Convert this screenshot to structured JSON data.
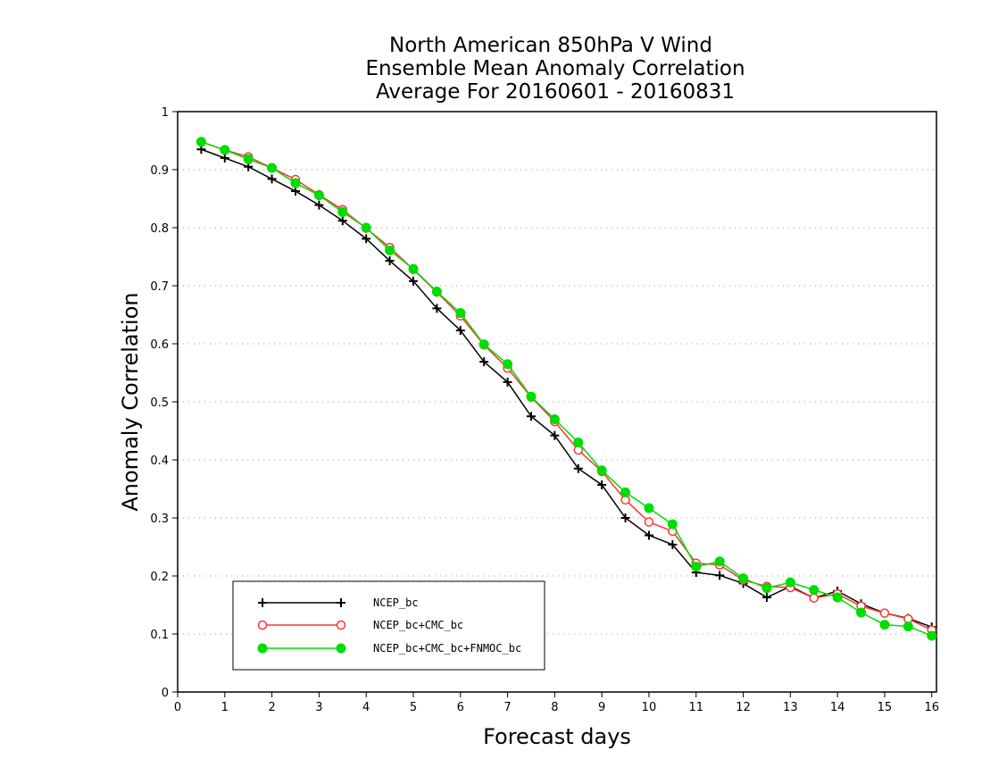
{
  "chart_data": {
    "type": "line",
    "title": [
      "North American 850hPa V Wind",
      "Ensemble Mean Anomaly Correlation",
      "Average For 20160601 - 20160831"
    ],
    "xlabel": "Forecast days",
    "ylabel": "Anomaly Correlation",
    "xlim": [
      0,
      16.1
    ],
    "ylim": [
      0,
      1
    ],
    "xticks": [
      "0",
      "1",
      "2",
      "3",
      "4",
      "5",
      "6",
      "7",
      "8",
      "9",
      "10",
      "11",
      "12",
      "13",
      "14",
      "15",
      "16"
    ],
    "yticks": [
      "0",
      "0.1",
      "0.2",
      "0.3",
      "0.4",
      "0.5",
      "0.6",
      "0.7",
      "0.8",
      "0.9",
      "1"
    ],
    "grid": "horizontal dotted",
    "legend_position": "bottom-left",
    "x": [
      0.5,
      1,
      1.5,
      2,
      2.5,
      3,
      3.5,
      4,
      4.5,
      5,
      5.5,
      6,
      6.5,
      7,
      7.5,
      8,
      8.5,
      9,
      9.5,
      10,
      10.5,
      11,
      11.5,
      12,
      12.5,
      13,
      13.5,
      14,
      14.5,
      15,
      15.5,
      16
    ],
    "series": [
      {
        "name": "NCEP_bc",
        "color": "#000000",
        "marker": "plus",
        "values": [
          0.935,
          0.92,
          0.905,
          0.884,
          0.863,
          0.839,
          0.812,
          0.781,
          0.743,
          0.708,
          0.661,
          0.623,
          0.569,
          0.534,
          0.475,
          0.442,
          0.385,
          0.357,
          0.3,
          0.27,
          0.254,
          0.206,
          0.201,
          0.187,
          0.163,
          0.182,
          0.162,
          0.174,
          0.152,
          0.136,
          0.127,
          0.112
        ]
      },
      {
        "name": "NCEP_bc+CMC_bc",
        "color": "#ff3333",
        "marker": "open-circle",
        "values": [
          0.948,
          0.934,
          0.922,
          0.903,
          0.883,
          0.857,
          0.831,
          0.799,
          0.766,
          0.728,
          0.689,
          0.648,
          0.598,
          0.558,
          0.508,
          0.466,
          0.417,
          0.38,
          0.331,
          0.293,
          0.277,
          0.222,
          0.219,
          0.193,
          0.182,
          0.18,
          0.162,
          0.169,
          0.148,
          0.136,
          0.126,
          0.107
        ]
      },
      {
        "name": "NCEP_bc+CMC_bc+FNMOC_bc",
        "color": "#00dd00",
        "marker": "filled-circle",
        "values": [
          0.948,
          0.934,
          0.918,
          0.903,
          0.877,
          0.856,
          0.827,
          0.8,
          0.761,
          0.729,
          0.69,
          0.653,
          0.599,
          0.565,
          0.509,
          0.47,
          0.43,
          0.382,
          0.344,
          0.317,
          0.289,
          0.216,
          0.225,
          0.196,
          0.179,
          0.189,
          0.176,
          0.163,
          0.137,
          0.116,
          0.113,
          0.097
        ]
      }
    ]
  }
}
